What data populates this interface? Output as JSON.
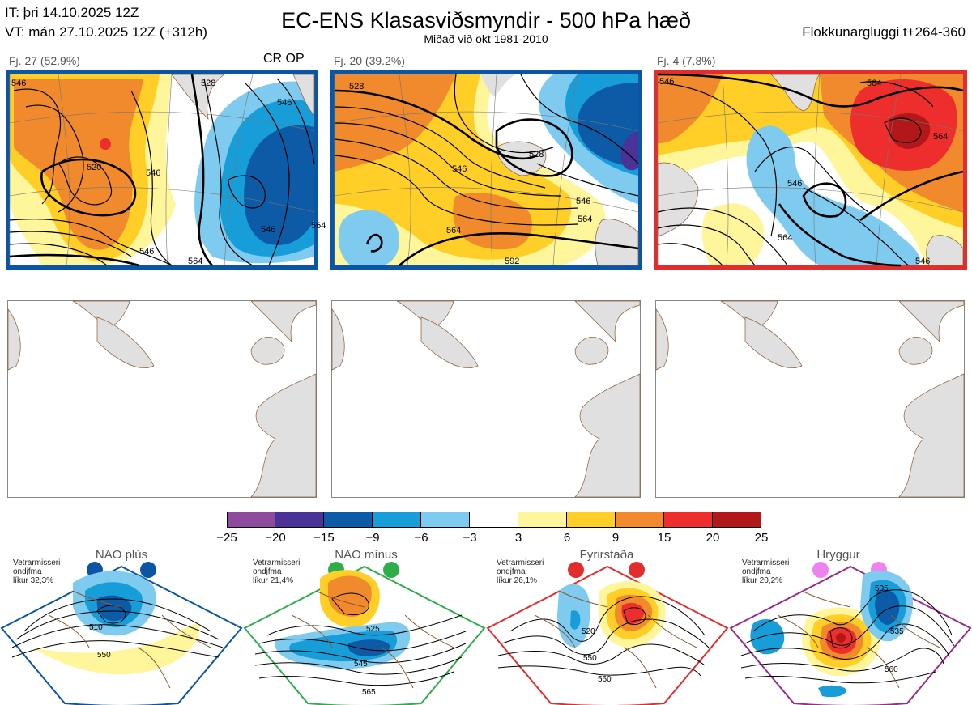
{
  "header": {
    "init_time": "IT: þri 14.10.2025 12Z",
    "valid_time": "VT: mán 27.10.2025 12Z  (+312h)",
    "title": "EC-ENS Klasasviðsmyndir - 500 hPa hæð",
    "subtitle": "Miðað við okt 1981-2010",
    "window": "Flokkunargluggi t+264-360"
  },
  "clusters": [
    {
      "label": "Fj. 27 (52.9%)",
      "members": 27,
      "percent": 52.9,
      "extra": "CR OP",
      "border_color": "#0a56a4",
      "contour_labels": [
        "546",
        "520",
        "546",
        "528",
        "546",
        "564",
        "546",
        "564",
        "546"
      ]
    },
    {
      "label": "Fj. 20 (39.2%)",
      "members": 20,
      "percent": 39.2,
      "extra": "",
      "border_color": "#0a56a4",
      "contour_labels": [
        "528",
        "546",
        "528",
        "546",
        "564",
        "564",
        "592"
      ]
    },
    {
      "label": "Fj. 4 (7.8%)",
      "members": 4,
      "percent": 7.8,
      "extra": "",
      "border_color": "#e32d2d",
      "contour_labels": [
        "546",
        "564",
        "546",
        "564",
        "564",
        "546"
      ]
    }
  ],
  "colorbar": {
    "ticks": [
      "−25",
      "−20",
      "−15",
      "−9",
      "−6",
      "−3",
      "3",
      "6",
      "9",
      "15",
      "20",
      "25"
    ],
    "colors": [
      "#8e4a9c",
      "#4a3296",
      "#0d5aa6",
      "#179ed9",
      "#7ecbef",
      "#ffffff",
      "#fff59a",
      "#ffcf27",
      "#f08a2c",
      "#ee2d2d",
      "#b2171a"
    ]
  },
  "regimes": [
    {
      "name": "NAO plús",
      "note": [
        "Vetrarmisseri",
        "ondjfma",
        "líkur 32,3%"
      ],
      "color": "#0a56a4",
      "labels": [
        "510",
        "550"
      ]
    },
    {
      "name": "NAO mínus",
      "note": [
        "Vetrarmisseri",
        "ondjfma",
        "líkur 21,4%"
      ],
      "color": "#2eae4a",
      "labels": [
        "525",
        "545",
        "565"
      ]
    },
    {
      "name": "Fyrirstaða",
      "note": [
        "Vetrarmisseri",
        "ondjfma",
        "líkur 26,1%"
      ],
      "color": "#e32d2d",
      "labels": [
        "520",
        "550",
        "560"
      ]
    },
    {
      "name": "Hryggur",
      "note": [
        "Vetrarmisseri",
        "ondjfma",
        "líkur 20,2%"
      ],
      "color": "#9b2a8f",
      "dot_color": "#ee82ee",
      "labels": [
        "505",
        "535",
        "560"
      ]
    }
  ],
  "icons": {
    "land": "landmass-shape",
    "regime_marker": "circle-icon"
  }
}
